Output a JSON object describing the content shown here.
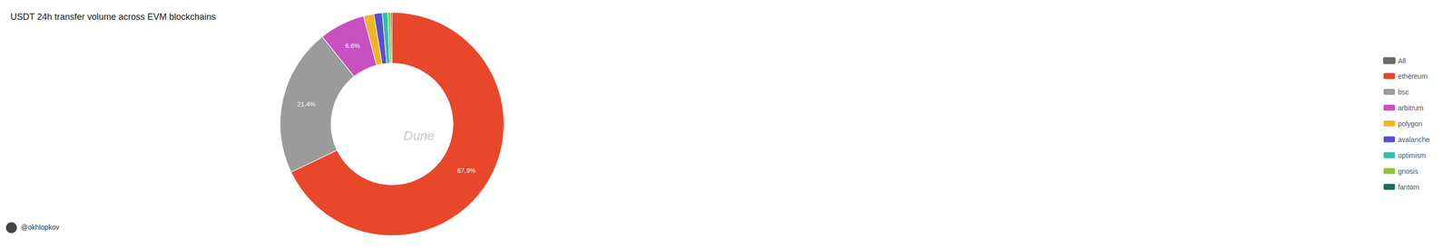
{
  "chart_data": {
    "type": "pie",
    "title": "USDT 24h transfer volume across EVM blockchains",
    "categories": [
      "ethereum",
      "bsc",
      "arbitrum",
      "polygon",
      "avalanche",
      "optimism",
      "gnosis",
      "fantom"
    ],
    "values": [
      67.9,
      21.4,
      6.6,
      1.5,
      1.2,
      0.8,
      0.4,
      0.2
    ],
    "colors": [
      "#E8472A",
      "#9B9B9B",
      "#C850C0",
      "#F0B429",
      "#5A4FCF",
      "#2FBFAD",
      "#8DC63F",
      "#1B6B5A"
    ],
    "data_labels": true,
    "value_labels": [
      "67.9%",
      "21.4%",
      "6.6%",
      null,
      null,
      null,
      null,
      null
    ],
    "annotations": [
      "Dune",
      "@okhlopkov"
    ],
    "legend": "right",
    "legend_entries": [
      {
        "label": "All",
        "color": "#6B6B6B"
      },
      {
        "label": "ethereum",
        "color": "#E8472A"
      },
      {
        "label": "bsc",
        "color": "#9B9B9B"
      },
      {
        "label": "arbitrum",
        "color": "#C850C0"
      },
      {
        "label": "polygon",
        "color": "#F0B429"
      },
      {
        "label": "avalanche",
        "color": "#5A4FCF"
      },
      {
        "label": "optimism",
        "color": "#2FBFAD"
      },
      {
        "label": "gnosis",
        "color": "#8DC63F"
      },
      {
        "label": "fantom",
        "color": "#1B6B5A"
      }
    ]
  }
}
